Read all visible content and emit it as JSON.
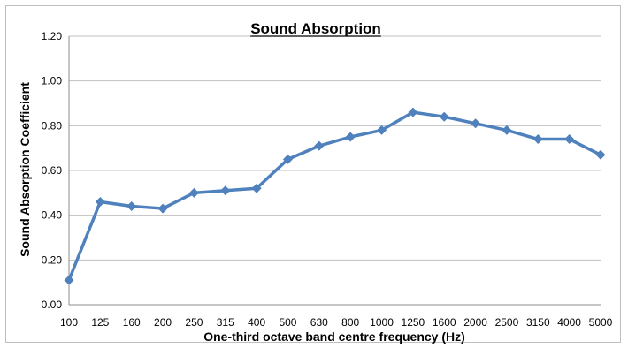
{
  "chart_data": {
    "type": "line",
    "title": "Sound Absorption",
    "xlabel": "One-third octave band centre frequency (Hz)",
    "ylabel": "Sound Absorption Coefficient",
    "categories": [
      "100",
      "125",
      "160",
      "200",
      "250",
      "315",
      "400",
      "500",
      "630",
      "800",
      "1000",
      "1250",
      "1600",
      "2000",
      "2500",
      "3150",
      "4000",
      "5000"
    ],
    "series": [
      {
        "values": [
          0.11,
          0.46,
          0.44,
          0.43,
          0.5,
          0.51,
          0.52,
          0.65,
          0.71,
          0.75,
          0.78,
          0.86,
          0.84,
          0.81,
          0.78,
          0.74,
          0.74,
          0.67
        ],
        "color": "#4f81bd"
      }
    ],
    "ylim": [
      0,
      1.2
    ],
    "yticks": [
      "0.00",
      "0.20",
      "0.40",
      "0.60",
      "0.80",
      "1.00",
      "1.20"
    ],
    "grid": true,
    "marker": "diamond"
  }
}
